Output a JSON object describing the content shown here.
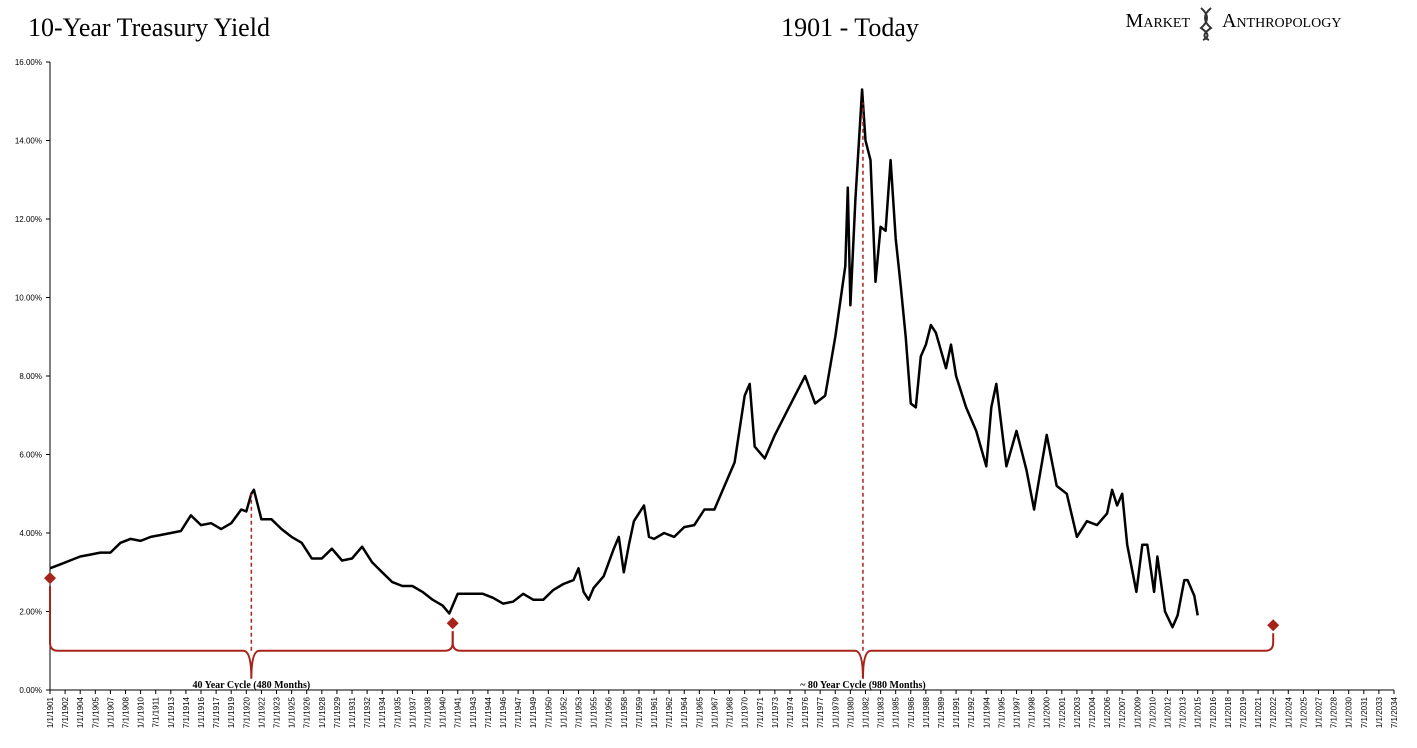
{
  "chart_data": {
    "type": "line",
    "title": "10-Year Treasury Yield",
    "subtitle": "1901 - Today",
    "brand": [
      "Market",
      "Anthropology"
    ],
    "color": "#000000",
    "accent_color": "#a8241b",
    "x": [
      "1/1/1901",
      "1/1/1902",
      "1/1/1903",
      "1/1/1904",
      "1/1/1905",
      "1/1/1906",
      "1/1/1907",
      "1/1/1908",
      "1/1/1909",
      "1/1/1910",
      "1/1/1911",
      "1/1/1912",
      "1/1/1913",
      "1/1/1914",
      "1/1/1915",
      "1/1/1916",
      "1/1/1917",
      "1/1/1918",
      "1/1/1919",
      "1/1/1920",
      "7/1/1920",
      "1/1/1921",
      "4/1/1921",
      "1/1/1922",
      "1/1/1923",
      "1/1/1924",
      "1/1/1925",
      "1/1/1926",
      "1/1/1927",
      "1/1/1928",
      "1/1/1929",
      "1/1/1930",
      "1/1/1931",
      "1/1/1932",
      "1/1/1933",
      "1/1/1934",
      "1/1/1935",
      "1/1/1936",
      "1/1/1937",
      "1/1/1938",
      "1/1/1939",
      "1/1/1940",
      "9/1/1940",
      "7/1/1941",
      "1/1/1942",
      "1/1/1943",
      "1/1/1944",
      "1/1/1945",
      "1/1/1946",
      "1/1/1947",
      "1/1/1948",
      "1/1/1949",
      "1/1/1950",
      "1/1/1951",
      "1/1/1952",
      "1/1/1953",
      "7/1/1953",
      "1/1/1954",
      "7/1/1954",
      "1/1/1955",
      "1/1/1956",
      "1/1/1957",
      "7/1/1957",
      "1/1/1958",
      "7/1/1958",
      "1/1/1959",
      "1/1/1960",
      "7/1/1960",
      "1/1/1961",
      "1/1/1962",
      "1/1/1963",
      "1/1/1964",
      "1/1/1965",
      "1/1/1966",
      "1/1/1967",
      "1/1/1968",
      "1/1/1969",
      "1/1/1970",
      "7/1/1970",
      "1/1/1971",
      "1/1/1972",
      "1/1/1973",
      "1/1/1974",
      "1/1/1975",
      "1/1/1976",
      "1/1/1977",
      "1/1/1978",
      "1/1/1979",
      "1/1/1980",
      "4/1/1980",
      "7/1/1980",
      "1/1/1981",
      "9/1/1981",
      "1/1/1982",
      "7/1/1982",
      "1/1/1983",
      "7/1/1983",
      "1/1/1984",
      "7/1/1984",
      "1/1/1985",
      "7/1/1985",
      "1/1/1986",
      "7/1/1986",
      "1/1/1987",
      "7/1/1987",
      "1/1/1988",
      "7/1/1988",
      "1/1/1989",
      "1/1/1990",
      "7/1/1990",
      "1/1/1991",
      "1/1/1992",
      "1/1/1993",
      "1/1/1994",
      "7/1/1994",
      "1/1/1995",
      "1/1/1996",
      "1/1/1997",
      "1/1/1998",
      "10/1/1998",
      "1/1/1999",
      "1/1/2000",
      "1/1/2001",
      "1/1/2002",
      "1/1/2003",
      "1/1/2004",
      "1/1/2005",
      "1/1/2006",
      "7/1/2006",
      "1/1/2007",
      "7/1/2007",
      "1/1/2008",
      "12/1/2008",
      "7/1/2009",
      "1/1/2010",
      "9/1/2010",
      "1/1/2011",
      "10/1/2011",
      "7/1/2012",
      "1/1/2013",
      "9/1/2013",
      "1/1/2014",
      "9/1/2014",
      "1/1/2015"
    ],
    "values": [
      3.1,
      3.2,
      3.3,
      3.4,
      3.45,
      3.5,
      3.5,
      3.75,
      3.85,
      3.8,
      3.9,
      3.95,
      4.0,
      4.05,
      4.45,
      4.2,
      4.25,
      4.1,
      4.25,
      4.6,
      4.55,
      5.0,
      5.1,
      4.35,
      4.35,
      4.1,
      3.9,
      3.75,
      3.35,
      3.35,
      3.6,
      3.3,
      3.35,
      3.65,
      3.25,
      3.0,
      2.75,
      2.65,
      2.65,
      2.5,
      2.3,
      2.15,
      1.95,
      2.45,
      2.45,
      2.45,
      2.45,
      2.35,
      2.2,
      2.25,
      2.45,
      2.3,
      2.3,
      2.55,
      2.7,
      2.8,
      3.1,
      2.5,
      2.3,
      2.6,
      2.9,
      3.6,
      3.9,
      3.0,
      3.7,
      4.3,
      4.7,
      3.9,
      3.85,
      4.0,
      3.9,
      4.15,
      4.2,
      4.6,
      4.6,
      5.2,
      5.8,
      7.5,
      7.8,
      6.2,
      5.9,
      6.5,
      7.0,
      7.5,
      8.0,
      7.3,
      7.5,
      9.0,
      10.8,
      12.8,
      9.8,
      12.5,
      15.3,
      14.0,
      13.5,
      10.4,
      11.8,
      11.7,
      13.5,
      11.5,
      10.3,
      9.0,
      7.3,
      7.2,
      8.5,
      8.8,
      9.3,
      9.1,
      8.2,
      8.8,
      8.0,
      7.2,
      6.6,
      5.7,
      7.2,
      7.8,
      5.7,
      6.6,
      5.6,
      4.6,
      5.0,
      6.5,
      5.2,
      5.0,
      3.9,
      4.3,
      4.2,
      4.5,
      5.1,
      4.7,
      5.0,
      3.7,
      2.5,
      3.7,
      3.7,
      2.5,
      3.4,
      2.0,
      1.6,
      1.9,
      2.8,
      2.8,
      2.4,
      1.9
    ],
    "xlim": [
      "1/1/1901",
      "7/1/2034"
    ],
    "xticks": [
      "1/1/1901",
      "7/1/1902",
      "1/1/1904",
      "7/1/1905",
      "1/1/1907",
      "7/1/1908",
      "1/1/1910",
      "7/1/1911",
      "1/1/1913",
      "7/1/1914",
      "1/1/1916",
      "7/1/1917",
      "1/1/1919",
      "7/1/1920",
      "1/1/1922",
      "7/1/1923",
      "1/1/1925",
      "7/1/1926",
      "1/1/1928",
      "7/1/1929",
      "1/1/1931",
      "7/1/1932",
      "1/1/1934",
      "7/1/1935",
      "1/1/1937",
      "7/1/1938",
      "1/1/1940",
      "7/1/1941",
      "1/1/1943",
      "7/1/1944",
      "1/1/1946",
      "7/1/1947",
      "1/1/1949",
      "7/1/1950",
      "1/1/1952",
      "7/1/1953",
      "1/1/1955",
      "7/1/1956",
      "1/1/1958",
      "7/1/1959",
      "1/1/1961",
      "7/1/1962",
      "1/1/1964",
      "7/1/1965",
      "1/1/1967",
      "7/1/1968",
      "1/1/1970",
      "7/1/1971",
      "1/1/1973",
      "7/1/1974",
      "1/1/1976",
      "7/1/1977",
      "1/1/1979",
      "7/1/1980",
      "1/1/1982",
      "7/1/1983",
      "1/1/1985",
      "7/1/1986",
      "1/1/1988",
      "7/1/1989",
      "1/1/1991",
      "7/1/1992",
      "1/1/1994",
      "7/1/1995",
      "1/1/1997",
      "7/1/1998",
      "1/1/2000",
      "7/1/2001",
      "1/1/2003",
      "7/1/2004",
      "1/1/2006",
      "7/1/2007",
      "1/1/2009",
      "7/1/2010",
      "1/1/2012",
      "7/1/2013",
      "1/1/2015",
      "7/1/2016",
      "1/1/2018",
      "7/1/2019",
      "1/1/2021",
      "7/1/2022",
      "1/1/2024",
      "7/1/2025",
      "1/1/2027",
      "7/1/2028",
      "1/1/2030",
      "7/1/2031",
      "1/1/2033",
      "7/1/2034"
    ],
    "ylim": [
      0,
      16
    ],
    "yticks": [
      {
        "value": 0,
        "label": "0.00%"
      },
      {
        "value": 2,
        "label": "2.00%"
      },
      {
        "value": 4,
        "label": "4.00%"
      },
      {
        "value": 6,
        "label": "6.00%"
      },
      {
        "value": 8,
        "label": "8.00%"
      },
      {
        "value": 10,
        "label": "10.00%"
      },
      {
        "value": 12,
        "label": "12.00%"
      },
      {
        "value": 14,
        "label": "14.00%"
      },
      {
        "value": 16,
        "label": "16.00%"
      }
    ],
    "markers": [
      {
        "x": "1/1/1901",
        "value": 2.85
      },
      {
        "x": "1/1/1941",
        "value": 1.7
      },
      {
        "x": "7/1/2022",
        "value": 1.65
      }
    ],
    "cycles": [
      {
        "label": "40 Year Cycle (480 Months)"
      },
      {
        "label": "~ 80 Year Cycle (980 Months)"
      }
    ]
  }
}
